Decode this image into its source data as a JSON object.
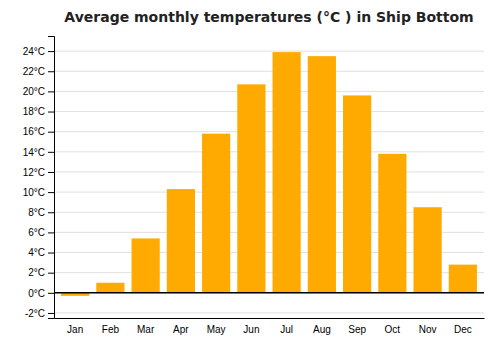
{
  "chart_data": {
    "type": "bar",
    "title": "Average monthly temperatures (°C ) in Ship Bottom",
    "categories": [
      "Jan",
      "Feb",
      "Mar",
      "Apr",
      "May",
      "Jun",
      "Jul",
      "Aug",
      "Sep",
      "Oct",
      "Nov",
      "Dec"
    ],
    "values": [
      -0.3,
      1.0,
      5.4,
      10.3,
      15.8,
      20.7,
      23.9,
      23.5,
      19.6,
      13.8,
      8.5,
      2.8
    ],
    "color": "#FFAA00",
    "ylim": [
      -2.5,
      25.5
    ],
    "yticks": [
      {
        "value": -2,
        "label": "-2°C"
      },
      {
        "value": 0,
        "label": "0°C"
      },
      {
        "value": 2,
        "label": "2°C"
      },
      {
        "value": 4,
        "label": "4°C"
      },
      {
        "value": 6,
        "label": "6°C"
      },
      {
        "value": 8,
        "label": "8°C"
      },
      {
        "value": 10,
        "label": "10°C"
      },
      {
        "value": 12,
        "label": "12°C"
      },
      {
        "value": 14,
        "label": "14°C"
      },
      {
        "value": 16,
        "label": "16°C"
      },
      {
        "value": 18,
        "label": "18°C"
      },
      {
        "value": 20,
        "label": "20°C"
      },
      {
        "value": 22,
        "label": "22°C"
      },
      {
        "value": 24,
        "label": "24°C"
      }
    ],
    "grid": true
  }
}
